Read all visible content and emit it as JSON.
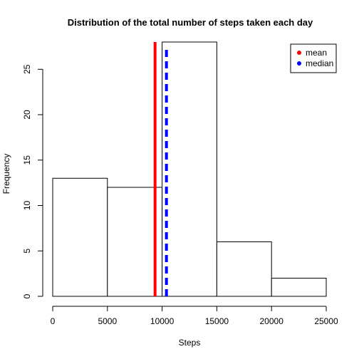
{
  "chart_data": {
    "type": "bar",
    "subtype": "histogram",
    "title": "Distribution of the total number of steps taken each day",
    "xlabel": "Steps",
    "ylabel": "Frequency",
    "bins": [
      {
        "start": 0,
        "end": 5000,
        "count": 13
      },
      {
        "start": 5000,
        "end": 10000,
        "count": 12
      },
      {
        "start": 10000,
        "end": 15000,
        "count": 28
      },
      {
        "start": 15000,
        "end": 20000,
        "count": 6
      },
      {
        "start": 20000,
        "end": 25000,
        "count": 2
      }
    ],
    "xlim": [
      0,
      25000
    ],
    "ylim": [
      0,
      28
    ],
    "x_ticks": [
      0,
      5000,
      10000,
      15000,
      20000,
      25000
    ],
    "y_ticks": [
      0,
      5,
      10,
      15,
      20,
      25
    ],
    "bar_fill": "#ffffff",
    "bar_stroke": "#000000",
    "reference_lines": [
      {
        "name": "mean",
        "value": 9354,
        "color": "#ff0000",
        "style": "solid"
      },
      {
        "name": "median",
        "value": 10395,
        "color": "#0000ff",
        "style": "dashed"
      }
    ],
    "legend": {
      "position": "top-right",
      "entries": [
        {
          "label": "mean",
          "color": "#ff0000"
        },
        {
          "label": "median",
          "color": "#0000ff"
        }
      ]
    },
    "grid": false
  }
}
